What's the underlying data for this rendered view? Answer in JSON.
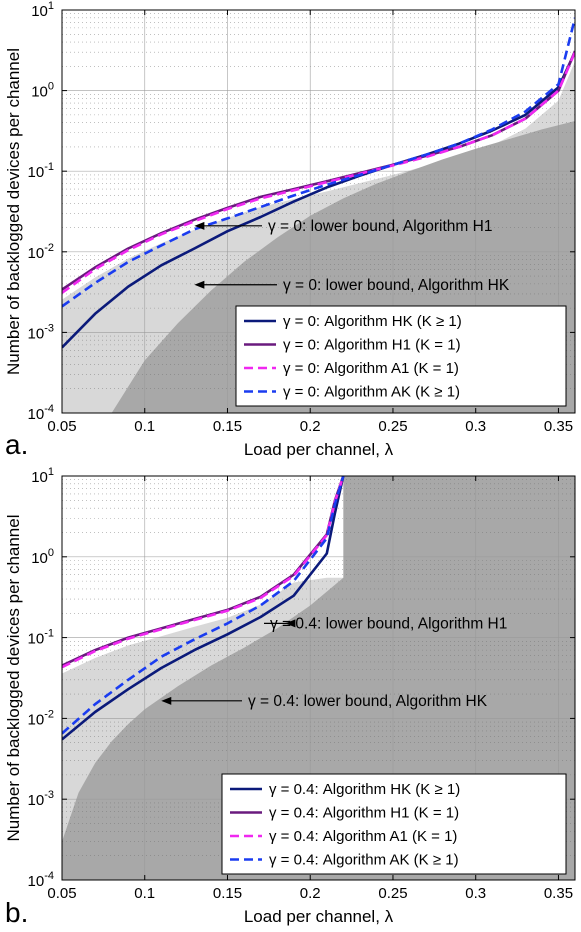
{
  "chart_data": [
    {
      "type": "line",
      "panel_label": "a.",
      "xlabel": "Load per channel,  λ",
      "ylabel": "Number of backlogged devices per channel",
      "xlim": [
        0.05,
        0.36
      ],
      "ylim": [
        0.0001,
        10
      ],
      "yscale": "log",
      "grid": "major and minor",
      "xticks": [
        {
          "v": 0.05,
          "label": "0.05"
        },
        {
          "v": 0.1,
          "label": "0.1"
        },
        {
          "v": 0.15,
          "label": "0.15"
        },
        {
          "v": 0.2,
          "label": "0.2"
        },
        {
          "v": 0.25,
          "label": "0.25"
        },
        {
          "v": 0.3,
          "label": "0.3"
        },
        {
          "v": 0.35,
          "label": "0.35"
        }
      ],
      "yticks": [
        {
          "v": 0.0001,
          "base": "10",
          "exp": "-4"
        },
        {
          "v": 0.001,
          "base": "10",
          "exp": "-3"
        },
        {
          "v": 0.01,
          "base": "10",
          "exp": "-2"
        },
        {
          "v": 0.1,
          "base": "10",
          "exp": "-1"
        },
        {
          "v": 1,
          "base": "10",
          "exp": "0"
        },
        {
          "v": 10,
          "base": "10",
          "exp": "1"
        }
      ],
      "regions": [
        {
          "kind": "lower-bound-H1",
          "color": "#d8d8d8",
          "x": [
            0.05,
            0.36
          ],
          "y": [
            0.0001,
            0.0001
          ]
        },
        {
          "kind": "lower-bound-HK",
          "color": "#a8a8a8",
          "x": [
            0.08,
            0.1,
            0.12,
            0.14,
            0.16,
            0.18,
            0.2,
            0.22,
            0.24,
            0.26,
            0.28,
            0.3,
            0.32,
            0.34,
            0.36
          ],
          "y": [
            0.0001,
            0.00045,
            0.0013,
            0.0033,
            0.0075,
            0.015,
            0.028,
            0.046,
            0.07,
            0.1,
            0.14,
            0.19,
            0.25,
            0.33,
            0.42
          ]
        }
      ],
      "series": [
        {
          "name": "γ = 0: Algorithm HK (K ≥ 1)",
          "color": "#0b1a7a",
          "dash": "solid",
          "x": [
            0.05,
            0.07,
            0.09,
            0.11,
            0.13,
            0.15,
            0.17,
            0.19,
            0.21,
            0.23,
            0.25,
            0.27,
            0.29,
            0.31,
            0.33,
            0.35,
            0.36
          ],
          "y": [
            0.00065,
            0.0017,
            0.0037,
            0.0068,
            0.011,
            0.018,
            0.027,
            0.042,
            0.063,
            0.088,
            0.12,
            0.16,
            0.22,
            0.32,
            0.5,
            1.1,
            3.0
          ]
        },
        {
          "name": "γ = 0: Algorithm H1 (K = 1)",
          "color": "#6a1a7e",
          "dash": "solid",
          "x": [
            0.05,
            0.07,
            0.09,
            0.11,
            0.13,
            0.15,
            0.17,
            0.19,
            0.21,
            0.23,
            0.25,
            0.27,
            0.29,
            0.31,
            0.33,
            0.35,
            0.36
          ],
          "y": [
            0.0034,
            0.0064,
            0.011,
            0.017,
            0.025,
            0.035,
            0.048,
            0.06,
            0.075,
            0.095,
            0.12,
            0.155,
            0.2,
            0.28,
            0.45,
            1.0,
            3.1
          ]
        },
        {
          "name": "γ = 0: Algorithm A1 (K = 1)",
          "color": "#f028f0",
          "dash": "dash",
          "x": [
            0.05,
            0.07,
            0.09,
            0.11,
            0.13,
            0.15,
            0.17,
            0.19,
            0.21,
            0.23,
            0.25,
            0.27,
            0.29,
            0.31,
            0.33,
            0.35,
            0.36
          ],
          "y": [
            0.0031,
            0.0061,
            0.0105,
            0.0165,
            0.024,
            0.034,
            0.046,
            0.058,
            0.073,
            0.093,
            0.118,
            0.15,
            0.2,
            0.28,
            0.45,
            1.0,
            3.0
          ]
        },
        {
          "name": "γ = 0: Algorithm AK (K ≥ 1)",
          "color": "#1a3cf0",
          "dash": "dash",
          "x": [
            0.05,
            0.07,
            0.09,
            0.11,
            0.13,
            0.15,
            0.17,
            0.19,
            0.21,
            0.23,
            0.25,
            0.27,
            0.29,
            0.31,
            0.33,
            0.35,
            0.36
          ],
          "y": [
            0.0021,
            0.0041,
            0.0075,
            0.012,
            0.019,
            0.026,
            0.036,
            0.05,
            0.068,
            0.09,
            0.12,
            0.16,
            0.22,
            0.33,
            0.55,
            1.2,
            8.0
          ]
        }
      ],
      "annotations": [
        {
          "text": "γ = 0: lower bound, Algorithm H1",
          "x": 0.13,
          "y": 0.021
        },
        {
          "text": "γ = 0: lower bound, Algorithm HK",
          "x": 0.13,
          "y": 0.0039
        }
      ],
      "legend": "bottom-right"
    },
    {
      "type": "line",
      "panel_label": "b.",
      "xlabel": "Load per channel,  λ",
      "ylabel": "Number of backlogged devices per channel",
      "xlim": [
        0.05,
        0.36
      ],
      "ylim": [
        0.0001,
        10
      ],
      "yscale": "log",
      "grid": "major and minor",
      "xticks": [
        {
          "v": 0.05,
          "label": "0.05"
        },
        {
          "v": 0.1,
          "label": "0.1"
        },
        {
          "v": 0.15,
          "label": "0.15"
        },
        {
          "v": 0.2,
          "label": "0.2"
        },
        {
          "v": 0.25,
          "label": "0.25"
        },
        {
          "v": 0.3,
          "label": "0.3"
        },
        {
          "v": 0.35,
          "label": "0.35"
        }
      ],
      "yticks": [
        {
          "v": 0.0001,
          "base": "10",
          "exp": "-4"
        },
        {
          "v": 0.001,
          "base": "10",
          "exp": "-3"
        },
        {
          "v": 0.01,
          "base": "10",
          "exp": "-2"
        },
        {
          "v": 0.1,
          "base": "10",
          "exp": "-1"
        },
        {
          "v": 1,
          "base": "10",
          "exp": "0"
        },
        {
          "v": 10,
          "base": "10",
          "exp": "1"
        }
      ],
      "regions": [
        {
          "kind": "lower-bound-H1",
          "color": "#d8d8d8",
          "x": [
            0.05,
            0.36
          ],
          "y": [
            0.0001,
            0.0001
          ]
        },
        {
          "kind": "lower-bound-HK",
          "color": "#a8a8a8",
          "x": [
            0.05,
            0.06,
            0.07,
            0.08,
            0.09,
            0.1,
            0.12,
            0.14,
            0.16,
            0.18,
            0.2,
            0.22,
            0.22,
            0.36
          ],
          "y": [
            0.0003,
            0.0012,
            0.0028,
            0.0052,
            0.0085,
            0.013,
            0.025,
            0.045,
            0.075,
            0.13,
            0.25,
            0.55,
            10,
            10
          ]
        }
      ],
      "series": [
        {
          "name": "γ = 0.4: Algorithm HK (K ≥ 1)",
          "color": "#0b1a7a",
          "dash": "solid",
          "x": [
            0.05,
            0.07,
            0.09,
            0.11,
            0.13,
            0.15,
            0.17,
            0.19,
            0.21,
            0.215,
            0.22
          ],
          "y": [
            0.0055,
            0.012,
            0.023,
            0.042,
            0.07,
            0.11,
            0.18,
            0.33,
            1.1,
            3.5,
            10
          ]
        },
        {
          "name": "γ = 0.4: Algorithm H1 (K = 1)",
          "color": "#6a1a7e",
          "dash": "solid",
          "x": [
            0.05,
            0.07,
            0.09,
            0.11,
            0.13,
            0.15,
            0.17,
            0.19,
            0.21,
            0.215,
            0.22
          ],
          "y": [
            0.045,
            0.07,
            0.1,
            0.13,
            0.17,
            0.22,
            0.32,
            0.6,
            1.9,
            5.0,
            10
          ]
        },
        {
          "name": "γ = 0.4: Algorithm A1 (K = 1)",
          "color": "#f028f0",
          "dash": "dash",
          "x": [
            0.05,
            0.07,
            0.09,
            0.11,
            0.13,
            0.15,
            0.17,
            0.19,
            0.21,
            0.215,
            0.22
          ],
          "y": [
            0.043,
            0.068,
            0.097,
            0.127,
            0.165,
            0.215,
            0.31,
            0.58,
            1.85,
            4.8,
            10
          ]
        },
        {
          "name": "γ = 0.4: Algorithm AK (K ≥ 1)",
          "color": "#1a3cf0",
          "dash": "dash",
          "x": [
            0.05,
            0.07,
            0.09,
            0.11,
            0.13,
            0.15,
            0.17,
            0.19,
            0.21,
            0.215,
            0.22
          ],
          "y": [
            0.0065,
            0.015,
            0.03,
            0.058,
            0.095,
            0.15,
            0.25,
            0.5,
            1.7,
            4.5,
            10
          ]
        }
      ],
      "annotations": [
        {
          "text": "γ = 0.4: lower bound, Algorithm H1",
          "x": 0.185,
          "y": 0.15
        },
        {
          "text": "γ = 0.4: lower bound, Algorithm HK",
          "x": 0.11,
          "y": 0.0165
        }
      ],
      "legend": "bottom-right"
    }
  ]
}
